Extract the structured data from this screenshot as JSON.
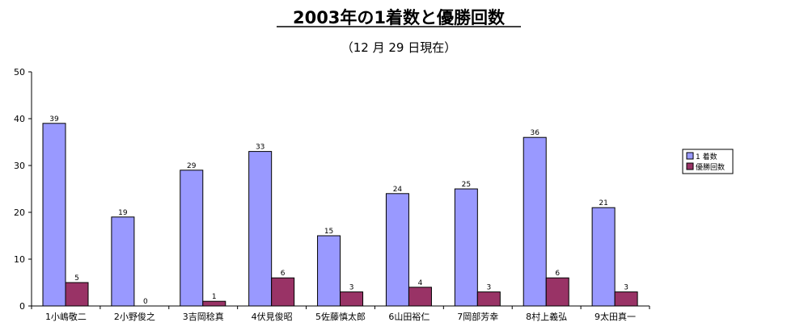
{
  "chart_data": {
    "type": "bar",
    "title": "2003年の1着数と優勝回数",
    "subtitle": "（12 月 29 日現在）",
    "categories": [
      "1小嶋敬二",
      "2小野俊之",
      "3吉岡稔真",
      "4伏見俊昭",
      "5佐藤慎太郎",
      "6山田裕仁",
      "7岡部芳幸",
      "8村上義弘",
      "9太田真一"
    ],
    "series": [
      {
        "name": "1 着数",
        "values": [
          39,
          19,
          29,
          33,
          15,
          24,
          25,
          36,
          21
        ],
        "color": "#9999ff"
      },
      {
        "name": "優勝回数",
        "values": [
          5,
          0,
          1,
          6,
          3,
          4,
          3,
          6,
          3
        ],
        "color": "#993366"
      }
    ],
    "yticks": [
      0,
      10,
      20,
      30,
      40,
      50
    ],
    "ylim": [
      0,
      50
    ],
    "xlabel": "",
    "ylabel": "",
    "grid": false,
    "legend_position": "right",
    "data_labels": true
  }
}
